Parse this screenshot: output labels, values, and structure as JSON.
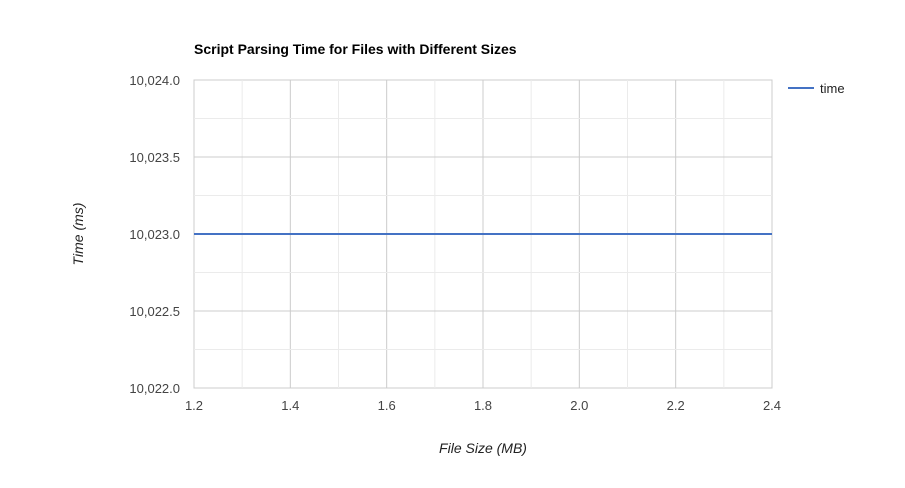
{
  "chart_data": {
    "type": "line",
    "title": "Script Parsing Time for Files with Different Sizes",
    "xlabel": "File Size (MB)",
    "ylabel": "Time (ms)",
    "xlim": [
      1.2,
      2.4
    ],
    "ylim": [
      10022.0,
      10024.0
    ],
    "x_ticks": [
      1.2,
      1.4,
      1.6,
      1.8,
      2.0,
      2.2,
      2.4
    ],
    "x_tick_labels": [
      "1.2",
      "1.4",
      "1.6",
      "1.8",
      "2.0",
      "2.2",
      "2.4"
    ],
    "y_ticks": [
      10022.0,
      10022.5,
      10023.0,
      10023.5,
      10024.0
    ],
    "y_tick_labels": [
      "10,022.0",
      "10,022.5",
      "10,023.0",
      "10,023.5",
      "10,024.0"
    ],
    "grid": true,
    "legend_position": "right",
    "series": [
      {
        "name": "time",
        "color": "#4472C4",
        "x": [
          1.2,
          2.4
        ],
        "y": [
          10023.0,
          10023.0
        ]
      }
    ]
  }
}
